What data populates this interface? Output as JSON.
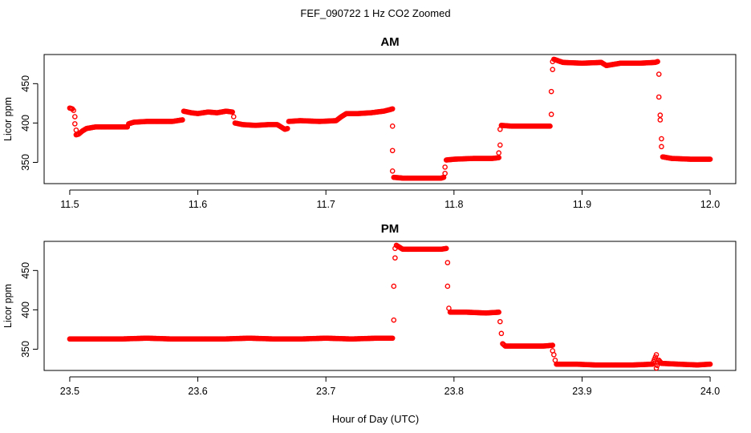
{
  "figure": {
    "title": "FEF_090722  1 Hz CO2 Zoomed",
    "xlabel": "Hour of Day (UTC)"
  },
  "colors": {
    "points": "#ff0000",
    "axes": "#000000",
    "background": "#ffffff"
  },
  "chart_data": [
    {
      "type": "scatter",
      "title": "AM",
      "ylabel": "Licor ppm",
      "xlim": [
        11.48,
        12.02
      ],
      "ylim": [
        323,
        487
      ],
      "xticks": [
        11.5,
        11.6,
        11.7,
        11.8,
        11.9,
        12.0
      ],
      "xtick_labels": [
        "11.5",
        "11.6",
        "11.7",
        "11.8",
        "11.9",
        "12.0"
      ],
      "yticks": [
        350,
        400,
        450
      ],
      "ytick_labels": [
        "350",
        "400",
        "450"
      ],
      "grid": false,
      "marker": "open-circle",
      "series_points": [
        [
          11.5,
          419
        ],
        [
          11.502,
          418
        ],
        [
          11.503,
          416
        ],
        [
          11.504,
          408
        ],
        [
          11.504,
          399
        ],
        [
          11.505,
          391
        ],
        [
          11.505,
          385
        ],
        [
          11.507,
          386
        ],
        [
          11.51,
          390
        ],
        [
          11.513,
          393
        ],
        [
          11.52,
          395
        ],
        [
          11.53,
          395
        ],
        [
          11.545,
          395
        ],
        [
          11.546,
          399
        ],
        [
          11.55,
          401
        ],
        [
          11.56,
          402
        ],
        [
          11.57,
          402
        ],
        [
          11.58,
          402
        ],
        [
          11.588,
          404
        ],
        [
          11.589,
          415
        ],
        [
          11.595,
          413
        ],
        [
          11.6,
          412
        ],
        [
          11.608,
          414
        ],
        [
          11.615,
          413
        ],
        [
          11.622,
          415
        ],
        [
          11.627,
          414
        ],
        [
          11.628,
          408
        ],
        [
          11.629,
          400
        ],
        [
          11.635,
          398
        ],
        [
          11.645,
          397
        ],
        [
          11.655,
          398
        ],
        [
          11.662,
          398
        ],
        [
          11.665,
          395
        ],
        [
          11.668,
          392
        ],
        [
          11.67,
          393
        ],
        [
          11.671,
          402
        ],
        [
          11.68,
          403
        ],
        [
          11.695,
          402
        ],
        [
          11.708,
          403
        ],
        [
          11.712,
          408
        ],
        [
          11.716,
          412
        ],
        [
          11.725,
          412
        ],
        [
          11.735,
          413
        ],
        [
          11.745,
          415
        ],
        [
          11.75,
          417
        ],
        [
          11.752,
          418
        ],
        [
          11.752,
          396
        ],
        [
          11.752,
          365
        ],
        [
          11.752,
          339
        ],
        [
          11.753,
          331
        ],
        [
          11.76,
          330
        ],
        [
          11.775,
          330
        ],
        [
          11.79,
          330
        ],
        [
          11.792,
          331
        ],
        [
          11.793,
          336
        ],
        [
          11.793,
          344
        ],
        [
          11.794,
          353
        ],
        [
          11.8,
          354
        ],
        [
          11.815,
          355
        ],
        [
          11.83,
          355
        ],
        [
          11.835,
          356
        ],
        [
          11.835,
          362
        ],
        [
          11.836,
          372
        ],
        [
          11.836,
          392
        ],
        [
          11.837,
          397
        ],
        [
          11.845,
          396
        ],
        [
          11.86,
          396
        ],
        [
          11.875,
          396
        ],
        [
          11.876,
          411
        ],
        [
          11.876,
          440
        ],
        [
          11.877,
          468
        ],
        [
          11.877,
          478
        ],
        [
          11.878,
          481
        ],
        [
          11.885,
          477
        ],
        [
          11.9,
          476
        ],
        [
          11.915,
          477
        ],
        [
          11.919,
          473
        ],
        [
          11.93,
          476
        ],
        [
          11.945,
          476
        ],
        [
          11.957,
          477
        ],
        [
          11.959,
          478
        ],
        [
          11.96,
          462
        ],
        [
          11.96,
          433
        ],
        [
          11.961,
          410
        ],
        [
          11.961,
          404
        ],
        [
          11.962,
          380
        ],
        [
          11.962,
          370
        ],
        [
          11.963,
          357
        ],
        [
          11.97,
          355
        ],
        [
          11.985,
          354
        ],
        [
          12.0,
          354
        ]
      ]
    },
    {
      "type": "scatter",
      "title": "PM",
      "ylabel": "Licor ppm",
      "xlim": [
        23.48,
        24.02
      ],
      "ylim": [
        323,
        487
      ],
      "xticks": [
        23.5,
        23.6,
        23.7,
        23.8,
        23.9,
        24.0
      ],
      "xtick_labels": [
        "23.5",
        "23.6",
        "23.7",
        "23.8",
        "23.9",
        "24.0"
      ],
      "yticks": [
        350,
        400,
        450
      ],
      "ytick_labels": [
        "350",
        "400",
        "450"
      ],
      "grid": false,
      "marker": "open-circle",
      "series_points": [
        [
          23.5,
          363
        ],
        [
          23.52,
          363
        ],
        [
          23.54,
          363
        ],
        [
          23.56,
          364
        ],
        [
          23.58,
          363
        ],
        [
          23.6,
          363
        ],
        [
          23.62,
          363
        ],
        [
          23.64,
          364
        ],
        [
          23.66,
          363
        ],
        [
          23.68,
          363
        ],
        [
          23.7,
          364
        ],
        [
          23.72,
          363
        ],
        [
          23.74,
          364
        ],
        [
          23.752,
          364
        ],
        [
          23.753,
          387
        ],
        [
          23.753,
          430
        ],
        [
          23.754,
          466
        ],
        [
          23.754,
          478
        ],
        [
          23.755,
          482
        ],
        [
          23.76,
          477
        ],
        [
          23.775,
          477
        ],
        [
          23.79,
          477
        ],
        [
          23.794,
          478
        ],
        [
          23.795,
          460
        ],
        [
          23.795,
          430
        ],
        [
          23.796,
          402
        ],
        [
          23.797,
          397
        ],
        [
          23.81,
          397
        ],
        [
          23.825,
          396
        ],
        [
          23.835,
          397
        ],
        [
          23.836,
          385
        ],
        [
          23.837,
          370
        ],
        [
          23.838,
          357
        ],
        [
          23.84,
          354
        ],
        [
          23.855,
          354
        ],
        [
          23.87,
          354
        ],
        [
          23.877,
          355
        ],
        [
          23.877,
          348
        ],
        [
          23.878,
          343
        ],
        [
          23.879,
          336
        ],
        [
          23.88,
          331
        ],
        [
          23.895,
          331
        ],
        [
          23.91,
          330
        ],
        [
          23.925,
          330
        ],
        [
          23.94,
          330
        ],
        [
          23.955,
          331
        ],
        [
          23.958,
          343
        ],
        [
          23.958,
          326
        ],
        [
          23.96,
          336
        ],
        [
          23.962,
          332
        ],
        [
          23.975,
          331
        ],
        [
          23.99,
          330
        ],
        [
          24.0,
          331
        ]
      ]
    }
  ]
}
